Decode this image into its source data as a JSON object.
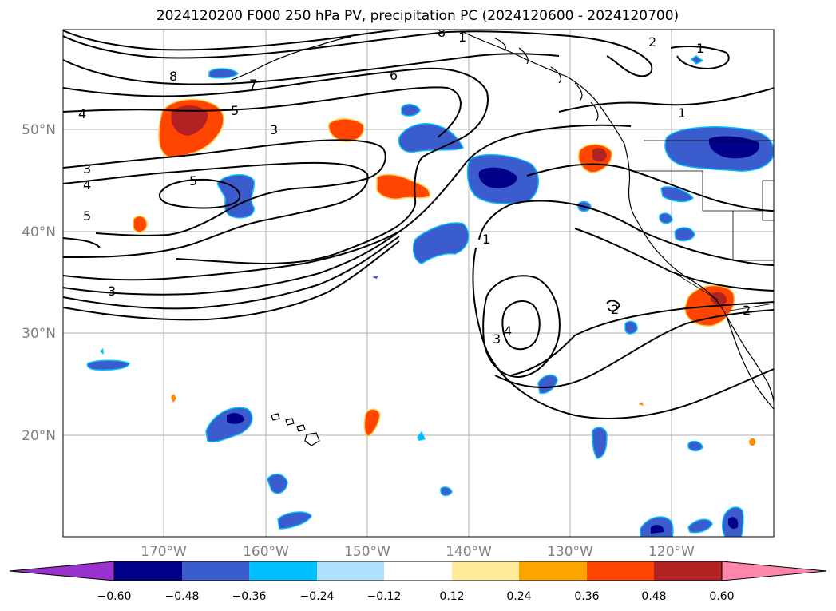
{
  "title": "2024120200 F000 250 hPa PV, precipitation PC (2024120600 - 2024120700)",
  "lon_ticks": [
    "170°W",
    "160°W",
    "150°W",
    "140°W",
    "130°W",
    "120°W"
  ],
  "lat_ticks": [
    "50°N",
    "40°N",
    "30°N",
    "20°N"
  ],
  "colorbar": {
    "ticks": [
      "−0.60",
      "−0.48",
      "−0.36",
      "−0.24",
      "−0.12",
      "0.12",
      "0.24",
      "0.36",
      "0.48",
      "0.60"
    ],
    "colors": {
      "under": "#9932cc",
      "bin1": "#00008b",
      "bin2": "#3a5ccc",
      "bin3": "#00bfff",
      "bin4": "#b0e2ff",
      "bin5": "#ffffff",
      "bin6": "#ffeb99",
      "bin7": "#ffa500",
      "bin8": "#ff4500",
      "bin9": "#b22222",
      "over": "#ff88aa"
    }
  },
  "contour_labels": [
    "8",
    "7",
    "6",
    "5",
    "4",
    "3",
    "4",
    "5",
    "3",
    "5",
    "1",
    "2",
    "1",
    "1",
    "3",
    "4",
    "3",
    "2",
    "2",
    "8",
    "1"
  ]
}
